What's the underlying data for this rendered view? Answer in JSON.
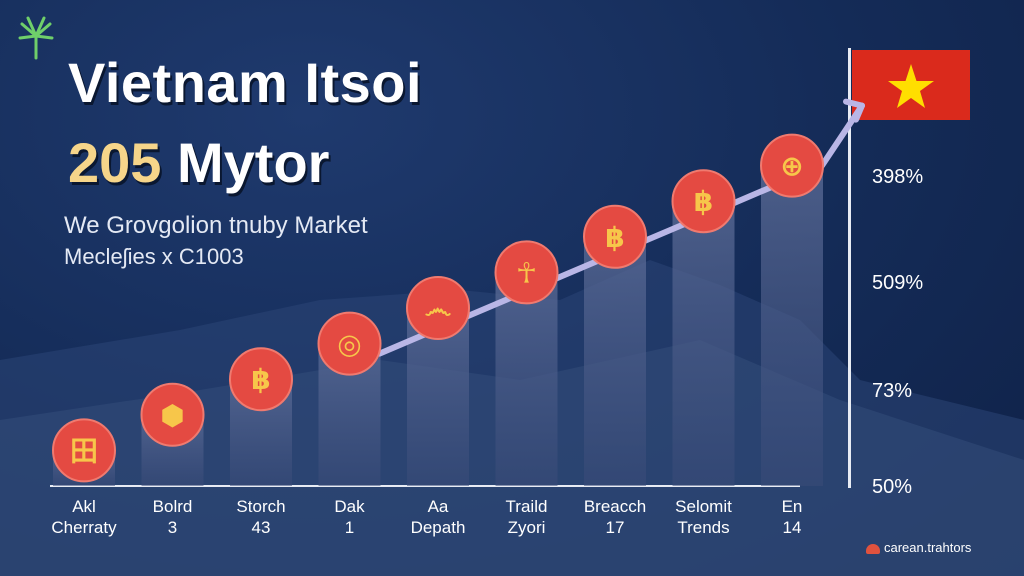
{
  "header": {
    "title_line1": "Vietnam Itsoi",
    "title_line2_year": "205",
    "title_line2_rest": "Mytor",
    "subtitle_line1": "We Grovgolion tnuby Market",
    "subtitle_line2": "Mecleʃies x C1003"
  },
  "right_axis_labels": [
    "398%",
    "509%",
    "73%",
    "50%"
  ],
  "footer": {
    "brand": "carean.trahtors"
  },
  "colors": {
    "background": "#142b57",
    "coin": "#e44a42",
    "coin_icon": "#f7c64a",
    "trend": "#b9b6e6",
    "flag_red": "#da2a1c",
    "flag_star": "#ffde00"
  },
  "chart_data": {
    "type": "bar",
    "categories": [
      [
        "Akl",
        "Cherraty"
      ],
      [
        "Bolrd",
        "3"
      ],
      [
        "Storch",
        "43"
      ],
      [
        "Dak",
        "1"
      ],
      [
        "Aa",
        "Depath"
      ],
      [
        "Traild",
        "Zyori"
      ],
      [
        "Breacch",
        "17"
      ],
      [
        "Selomit",
        "Trends"
      ],
      [
        "En",
        "14"
      ]
    ],
    "values": [
      1,
      2,
      3,
      4,
      5,
      6,
      7,
      8,
      9
    ],
    "coin_icons": [
      "grid-coin-icon",
      "hex-coin-icon",
      "bitcoin-icon",
      "ring-coin-icon",
      "glyph-coin-icon",
      "ankh-coin-icon",
      "bitcoin-icon",
      "bitcoin-icon",
      "plus-coin-icon"
    ],
    "trend_arrow": true,
    "ylim": [
      0,
      10
    ]
  }
}
